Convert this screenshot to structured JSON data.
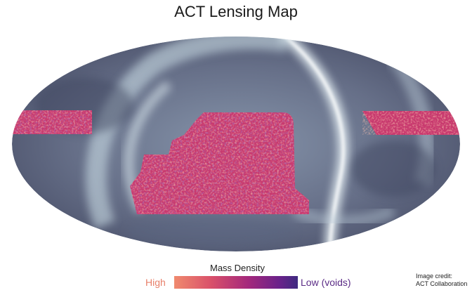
{
  "title": "ACT Lensing Map",
  "legend": {
    "title": "Mass Density",
    "high_label": "High",
    "low_label": "Low (voids)",
    "colors": [
      "#e8806a",
      "#d84a6c",
      "#a8287a",
      "#6a1f8a",
      "#3b2a7e"
    ]
  },
  "credit": {
    "line1": "Image credit:",
    "line2": "ACT Collaboration"
  },
  "palette": {
    "sky_dark": "#4f5670",
    "sky_mid": "#7f8ea6",
    "sky_bright": "#dbeaf0",
    "lensing_magenta": "#c8396e",
    "lensing_orange": "#e8806a",
    "lensing_purple": "#5e2a80",
    "high_text": "#e8806a",
    "low_text": "#5b2c86"
  }
}
